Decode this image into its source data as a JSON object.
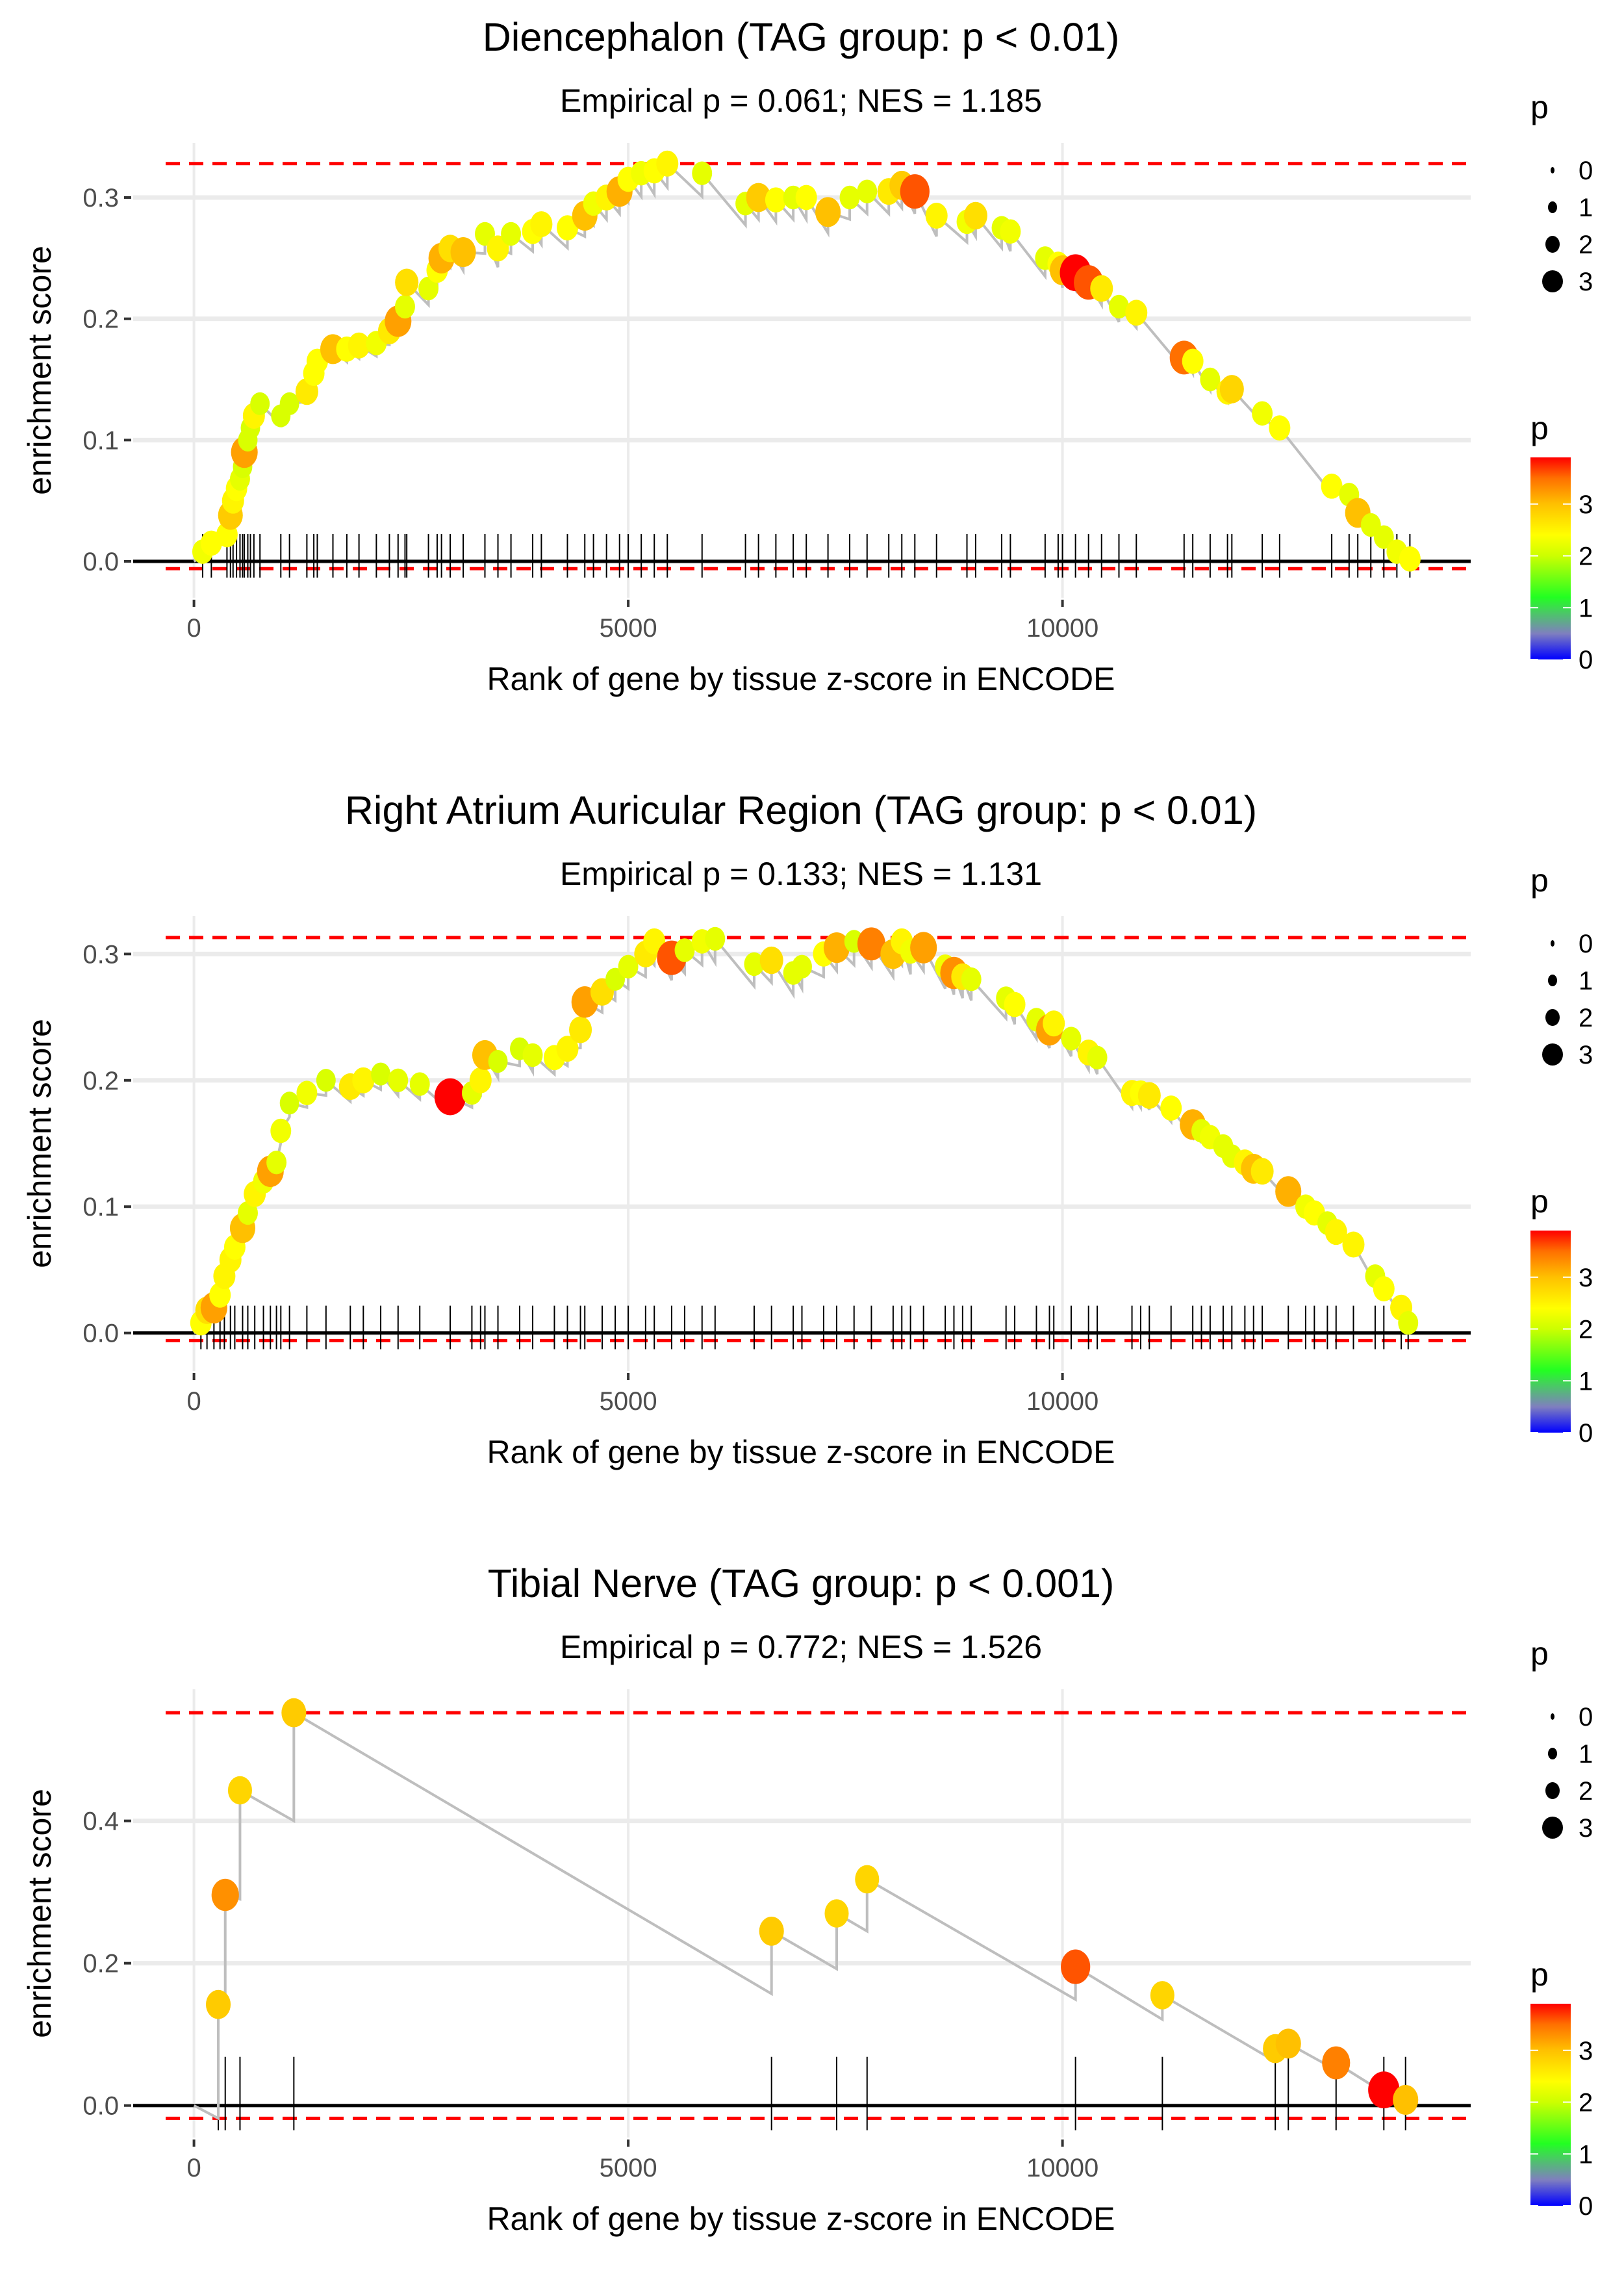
{
  "colors": {
    "background": "#ffffff",
    "grid": "#ebebeb",
    "running_line": "#bebebe",
    "zero_line": "#000000",
    "extreme_dashed": "#ff0000",
    "rug": "#000000",
    "tick_text": "#4d4d4d",
    "gradient": [
      "#0000ff",
      "#7f7fbf",
      "#22ff22",
      "#ccff00",
      "#ffff00",
      "#ffc000",
      "#ff7000",
      "#ff0000"
    ]
  },
  "legends": {
    "size_legend": {
      "title": "p",
      "entries": [
        "0",
        "1",
        "2",
        "3"
      ]
    },
    "color_legend": {
      "title": "p",
      "ticks": [
        "0",
        "1",
        "2",
        "3"
      ],
      "range": [
        0,
        3.9
      ]
    }
  },
  "chart_data": [
    {
      "type": "scatter",
      "title": "Diencephalon (TAG group: p < 0.01)",
      "subtitle": "Empirical p = 0.061; NES = 1.185",
      "xlabel": "Rank of gene by tissue z-score in ENCODE",
      "ylabel": "enrichment score",
      "xlim": [
        -700,
        14700
      ],
      "ylim": [
        -0.03,
        0.345
      ],
      "xticks": [
        0,
        5000,
        10000
      ],
      "xtick_labels": [
        "0",
        "5000",
        "10000"
      ],
      "yticks": [
        0.0,
        0.1,
        0.2,
        0.3
      ],
      "ytick_labels": [
        "0.0",
        "0.1",
        "0.2",
        "0.3"
      ],
      "max_es": 0.328,
      "min_es": -0.006,
      "grid": true,
      "legend": "right",
      "points": [
        [
          100,
          0.008,
          2.3
        ],
        [
          200,
          0.015,
          2.4
        ],
        [
          380,
          0.022,
          2.4
        ],
        [
          420,
          0.038,
          2.9
        ],
        [
          450,
          0.05,
          2.5
        ],
        [
          490,
          0.06,
          2.4
        ],
        [
          530,
          0.068,
          2.2
        ],
        [
          560,
          0.078,
          2.1
        ],
        [
          580,
          0.09,
          3.2
        ],
        [
          620,
          0.1,
          2.1
        ],
        [
          650,
          0.11,
          2.1
        ],
        [
          690,
          0.12,
          2.5
        ],
        [
          760,
          0.13,
          2.1
        ],
        [
          1000,
          0.12,
          2.1
        ],
        [
          1100,
          0.13,
          2.1
        ],
        [
          1300,
          0.14,
          2.6
        ],
        [
          1380,
          0.155,
          2.4
        ],
        [
          1420,
          0.165,
          2.4
        ],
        [
          1600,
          0.175,
          3.0
        ],
        [
          1760,
          0.175,
          2.4
        ],
        [
          1900,
          0.178,
          2.5
        ],
        [
          2100,
          0.18,
          2.3
        ],
        [
          2250,
          0.19,
          2.6
        ],
        [
          2350,
          0.198,
          3.2
        ],
        [
          2430,
          0.21,
          2.2
        ],
        [
          2450,
          0.23,
          2.7
        ],
        [
          2700,
          0.225,
          2.2
        ],
        [
          2800,
          0.24,
          2.4
        ],
        [
          2850,
          0.25,
          3.1
        ],
        [
          2950,
          0.258,
          2.7
        ],
        [
          3100,
          0.255,
          3.0
        ],
        [
          3350,
          0.27,
          2.2
        ],
        [
          3500,
          0.258,
          2.5
        ],
        [
          3650,
          0.27,
          2.2
        ],
        [
          3900,
          0.272,
          2.4
        ],
        [
          4000,
          0.278,
          2.5
        ],
        [
          4300,
          0.275,
          2.4
        ],
        [
          4500,
          0.285,
          3.0
        ],
        [
          4600,
          0.295,
          2.3
        ],
        [
          4750,
          0.3,
          2.5
        ],
        [
          4900,
          0.305,
          3.1
        ],
        [
          5000,
          0.315,
          2.4
        ],
        [
          5150,
          0.32,
          2.3
        ],
        [
          5300,
          0.322,
          2.4
        ],
        [
          5450,
          0.328,
          2.5
        ],
        [
          5850,
          0.32,
          2.2
        ],
        [
          6350,
          0.295,
          2.2
        ],
        [
          6500,
          0.3,
          2.9
        ],
        [
          6700,
          0.298,
          2.4
        ],
        [
          6900,
          0.3,
          2.2
        ],
        [
          7050,
          0.3,
          2.4
        ],
        [
          7300,
          0.288,
          3.0
        ],
        [
          7550,
          0.3,
          2.2
        ],
        [
          7750,
          0.305,
          2.2
        ],
        [
          8000,
          0.305,
          2.6
        ],
        [
          8150,
          0.31,
          2.9
        ],
        [
          8300,
          0.305,
          3.6
        ],
        [
          8550,
          0.285,
          2.5
        ],
        [
          8900,
          0.28,
          2.3
        ],
        [
          9000,
          0.285,
          2.7
        ],
        [
          9300,
          0.275,
          2.2
        ],
        [
          9400,
          0.272,
          2.3
        ],
        [
          9800,
          0.25,
          2.2
        ],
        [
          9950,
          0.245,
          2.4
        ],
        [
          10000,
          0.24,
          3.0
        ],
        [
          10150,
          0.238,
          3.9
        ],
        [
          10300,
          0.23,
          3.6
        ],
        [
          10450,
          0.225,
          2.6
        ],
        [
          10650,
          0.21,
          2.2
        ],
        [
          10850,
          0.205,
          2.5
        ],
        [
          11400,
          0.168,
          3.5
        ],
        [
          11500,
          0.165,
          2.4
        ],
        [
          11700,
          0.15,
          2.2
        ],
        [
          11900,
          0.14,
          2.5
        ],
        [
          11950,
          0.142,
          2.8
        ],
        [
          12300,
          0.122,
          2.3
        ],
        [
          12500,
          0.11,
          2.4
        ],
        [
          13100,
          0.062,
          2.4
        ],
        [
          13300,
          0.055,
          2.2
        ],
        [
          13400,
          0.04,
          3.0
        ],
        [
          13550,
          0.03,
          2.2
        ],
        [
          13700,
          0.02,
          2.2
        ],
        [
          13850,
          0.008,
          2.3
        ],
        [
          14000,
          0.002,
          2.4
        ]
      ]
    },
    {
      "type": "scatter",
      "title": "Right Atrium Auricular Region (TAG group: p < 0.01)",
      "subtitle": "Empirical p = 0.133; NES = 1.131",
      "xlabel": "Rank of gene by tissue z-score in ENCODE",
      "ylabel": "enrichment score",
      "xlim": [
        -700,
        14700
      ],
      "ylim": [
        -0.03,
        0.33
      ],
      "xticks": [
        0,
        5000,
        10000
      ],
      "xtick_labels": [
        "0",
        "5000",
        "10000"
      ],
      "yticks": [
        0.0,
        0.1,
        0.2,
        0.3
      ],
      "ytick_labels": [
        "0.0",
        "0.1",
        "0.2",
        "0.3"
      ],
      "max_es": 0.313,
      "min_es": -0.006,
      "grid": true,
      "legend": "right",
      "points": [
        [
          80,
          0.008,
          2.4
        ],
        [
          150,
          0.018,
          2.7
        ],
        [
          230,
          0.02,
          3.2
        ],
        [
          300,
          0.03,
          2.4
        ],
        [
          350,
          0.045,
          2.5
        ],
        [
          420,
          0.058,
          2.5
        ],
        [
          470,
          0.068,
          2.4
        ],
        [
          560,
          0.083,
          3.0
        ],
        [
          620,
          0.095,
          2.2
        ],
        [
          700,
          0.11,
          2.5
        ],
        [
          800,
          0.12,
          2.3
        ],
        [
          880,
          0.128,
          3.2
        ],
        [
          950,
          0.135,
          2.2
        ],
        [
          1000,
          0.16,
          2.3
        ],
        [
          1100,
          0.182,
          2.1
        ],
        [
          1300,
          0.19,
          2.3
        ],
        [
          1520,
          0.2,
          2.1
        ],
        [
          1800,
          0.195,
          2.6
        ],
        [
          1950,
          0.2,
          2.5
        ],
        [
          2150,
          0.205,
          2.1
        ],
        [
          2350,
          0.2,
          2.2
        ],
        [
          2600,
          0.197,
          2.2
        ],
        [
          2950,
          0.187,
          3.9
        ],
        [
          3200,
          0.19,
          2.2
        ],
        [
          3300,
          0.2,
          2.5
        ],
        [
          3350,
          0.22,
          3.0
        ],
        [
          3500,
          0.215,
          2.1
        ],
        [
          3750,
          0.225,
          2.1
        ],
        [
          3900,
          0.22,
          2.2
        ],
        [
          4150,
          0.218,
          2.4
        ],
        [
          4300,
          0.225,
          2.5
        ],
        [
          4450,
          0.24,
          2.6
        ],
        [
          4500,
          0.262,
          3.2
        ],
        [
          4700,
          0.27,
          2.7
        ],
        [
          4850,
          0.28,
          2.1
        ],
        [
          5000,
          0.29,
          2.2
        ],
        [
          5200,
          0.3,
          2.6
        ],
        [
          5300,
          0.31,
          2.5
        ],
        [
          5500,
          0.297,
          3.6
        ],
        [
          5650,
          0.303,
          2.2
        ],
        [
          5850,
          0.31,
          2.3
        ],
        [
          6000,
          0.312,
          2.2
        ],
        [
          6450,
          0.292,
          2.2
        ],
        [
          6650,
          0.295,
          2.7
        ],
        [
          6900,
          0.285,
          2.2
        ],
        [
          7000,
          0.29,
          2.2
        ],
        [
          7250,
          0.3,
          2.4
        ],
        [
          7400,
          0.305,
          3.1
        ],
        [
          7600,
          0.31,
          2.1
        ],
        [
          7800,
          0.308,
          3.4
        ],
        [
          8050,
          0.3,
          3.0
        ],
        [
          8150,
          0.31,
          2.5
        ],
        [
          8250,
          0.302,
          2.3
        ],
        [
          8400,
          0.305,
          3.2
        ],
        [
          8650,
          0.29,
          2.3
        ],
        [
          8750,
          0.285,
          3.3
        ],
        [
          8850,
          0.282,
          2.6
        ],
        [
          8950,
          0.28,
          2.2
        ],
        [
          9350,
          0.265,
          2.2
        ],
        [
          9450,
          0.26,
          2.4
        ],
        [
          9700,
          0.248,
          2.2
        ],
        [
          9850,
          0.24,
          3.2
        ],
        [
          9900,
          0.245,
          2.5
        ],
        [
          10100,
          0.233,
          2.2
        ],
        [
          10300,
          0.222,
          2.5
        ],
        [
          10400,
          0.218,
          2.2
        ],
        [
          10800,
          0.19,
          2.5
        ],
        [
          10900,
          0.19,
          2.4
        ],
        [
          11000,
          0.188,
          2.6
        ],
        [
          11250,
          0.178,
          2.4
        ],
        [
          11500,
          0.165,
          3.1
        ],
        [
          11600,
          0.16,
          2.2
        ],
        [
          11700,
          0.155,
          2.3
        ],
        [
          11850,
          0.148,
          2.2
        ],
        [
          11950,
          0.14,
          2.2
        ],
        [
          12100,
          0.135,
          2.5
        ],
        [
          12200,
          0.13,
          3.0
        ],
        [
          12300,
          0.128,
          2.6
        ],
        [
          12600,
          0.112,
          3.1
        ],
        [
          12800,
          0.1,
          2.3
        ],
        [
          12900,
          0.095,
          2.4
        ],
        [
          13050,
          0.087,
          2.2
        ],
        [
          13150,
          0.08,
          2.5
        ],
        [
          13350,
          0.07,
          2.5
        ],
        [
          13600,
          0.045,
          2.2
        ],
        [
          13700,
          0.035,
          2.4
        ],
        [
          13900,
          0.02,
          2.5
        ],
        [
          13980,
          0.008,
          2.2
        ]
      ]
    },
    {
      "type": "scatter",
      "title": "Tibial Nerve (TAG group: p < 0.001)",
      "subtitle": "Empirical p = 0.772; NES = 1.526",
      "xlabel": "Rank of gene by tissue z-score in ENCODE",
      "ylabel": "enrichment score",
      "xlim": [
        -700,
        14700
      ],
      "ylim": [
        -0.045,
        0.585
      ],
      "xticks": [
        0,
        5000,
        10000
      ],
      "xtick_labels": [
        "0",
        "5000",
        "10000"
      ],
      "yticks": [
        0.0,
        0.2,
        0.4
      ],
      "ytick_labels": [
        "0.0",
        "0.2",
        "0.4"
      ],
      "max_es": 0.552,
      "min_es": -0.018,
      "grid": true,
      "legend": "right",
      "points": [
        [
          280,
          0.142,
          2.9
        ],
        [
          360,
          0.296,
          3.3
        ],
        [
          530,
          0.443,
          2.8
        ],
        [
          1150,
          0.552,
          2.9
        ],
        [
          6650,
          0.245,
          2.9
        ],
        [
          7400,
          0.27,
          2.8
        ],
        [
          7750,
          0.318,
          2.8
        ],
        [
          10150,
          0.195,
          3.6
        ],
        [
          11150,
          0.155,
          2.8
        ],
        [
          12450,
          0.08,
          2.9
        ],
        [
          12600,
          0.087,
          3.0
        ],
        [
          13150,
          0.06,
          3.4
        ],
        [
          13700,
          0.022,
          3.9
        ],
        [
          13950,
          0.008,
          3.0
        ]
      ]
    }
  ]
}
